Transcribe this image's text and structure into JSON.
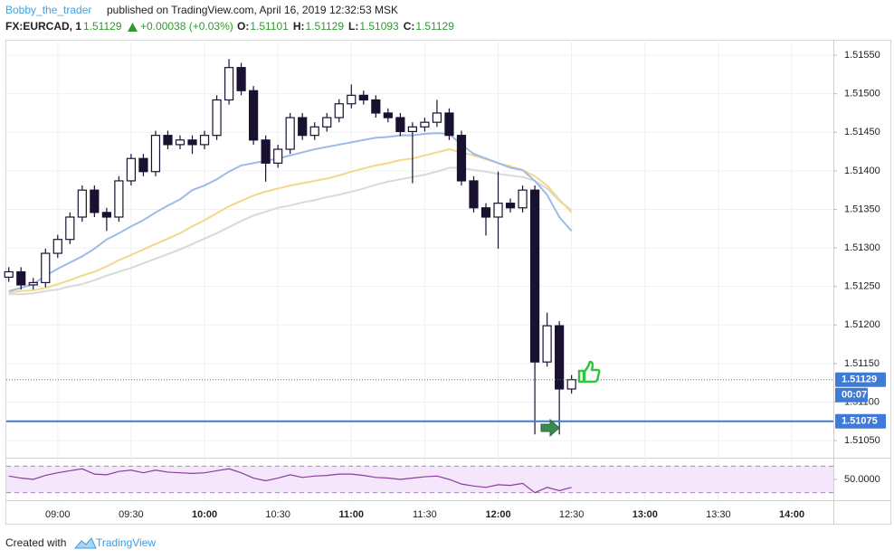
{
  "chart_data": {
    "type": "candlestick",
    "header": {
      "author": "Bobby_the_trader",
      "published": "published on TradingView.com, April 16, 2019 12:32:53 MSK",
      "symbol": "FX:EURCAD, 1",
      "last": "1.51129",
      "change": "+0.00038 (+0.03%)",
      "ohlc": [
        {
          "key": "O:",
          "value": "1.51101"
        },
        {
          "key": "H:",
          "value": "1.51129"
        },
        {
          "key": "L:",
          "value": "1.51093"
        },
        {
          "key": "C:",
          "value": "1.51129"
        }
      ]
    },
    "x": [
      "08:40",
      "08:45",
      "08:50",
      "08:55",
      "09:00",
      "09:05",
      "09:10",
      "09:15",
      "09:20",
      "09:25",
      "09:30",
      "09:35",
      "09:40",
      "09:45",
      "09:50",
      "09:55",
      "10:00",
      "10:05",
      "10:10",
      "10:15",
      "10:20",
      "10:25",
      "10:30",
      "10:35",
      "10:40",
      "10:45",
      "10:50",
      "10:55",
      "11:00",
      "11:05",
      "11:10",
      "11:15",
      "11:20",
      "11:25",
      "11:30",
      "11:35",
      "11:40",
      "11:45",
      "11:50",
      "11:55",
      "12:00",
      "12:05",
      "12:10",
      "12:15",
      "12:20",
      "12:25",
      "12:30"
    ],
    "open": [
      1.51262,
      1.51269,
      1.51252,
      1.51255,
      1.51293,
      1.51311,
      1.5134,
      1.51375,
      1.51346,
      1.5134,
      1.51387,
      1.51416,
      1.51399,
      1.51446,
      1.51434,
      1.5144,
      1.51434,
      1.51446,
      1.51492,
      1.51534,
      1.51504,
      1.5144,
      1.5141,
      1.51428,
      1.51469,
      1.51446,
      1.51457,
      1.51469,
      1.51487,
      1.51498,
      1.51492,
      1.51475,
      1.51469,
      1.51451,
      1.51457,
      1.51463,
      1.51475,
      1.51446,
      1.51387,
      1.51352,
      1.5134,
      1.51358,
      1.51352,
      1.51375,
      1.51152,
      1.51199,
      1.51117
    ],
    "high": [
      1.51275,
      1.51275,
      1.51261,
      1.51299,
      1.51317,
      1.51346,
      1.51381,
      1.51381,
      1.51352,
      1.51393,
      1.51422,
      1.51422,
      1.51452,
      1.51452,
      1.51446,
      1.51446,
      1.51452,
      1.51498,
      1.51545,
      1.5154,
      1.5151,
      1.51446,
      1.51434,
      1.51475,
      1.51475,
      1.51463,
      1.51475,
      1.51493,
      1.51512,
      1.51504,
      1.51498,
      1.51481,
      1.51475,
      1.51463,
      1.51469,
      1.51492,
      1.51481,
      1.51452,
      1.51393,
      1.51358,
      1.51399,
      1.51364,
      1.51381,
      1.51381,
      1.51216,
      1.51205,
      1.51135
    ],
    "low": [
      1.51256,
      1.51246,
      1.51246,
      1.51249,
      1.51287,
      1.51305,
      1.51334,
      1.5134,
      1.51322,
      1.51334,
      1.51381,
      1.51393,
      1.51393,
      1.51428,
      1.51428,
      1.51422,
      1.51428,
      1.5144,
      1.51486,
      1.51498,
      1.51434,
      1.51386,
      1.51404,
      1.51422,
      1.5144,
      1.5144,
      1.51451,
      1.51463,
      1.51481,
      1.51486,
      1.51469,
      1.51463,
      1.51445,
      1.51384,
      1.51451,
      1.51457,
      1.5144,
      1.51381,
      1.51346,
      1.51316,
      1.51299,
      1.51346,
      1.51346,
      1.51058,
      1.51146,
      1.51058,
      1.51111
    ],
    "close": [
      1.51269,
      1.51252,
      1.51255,
      1.51293,
      1.51311,
      1.5134,
      1.51375,
      1.51346,
      1.5134,
      1.51387,
      1.51416,
      1.51399,
      1.51446,
      1.51434,
      1.5144,
      1.51434,
      1.51446,
      1.51492,
      1.51534,
      1.51504,
      1.5144,
      1.5141,
      1.51428,
      1.51469,
      1.51446,
      1.51457,
      1.51469,
      1.51487,
      1.51498,
      1.51492,
      1.51475,
      1.51469,
      1.51451,
      1.51457,
      1.51463,
      1.51475,
      1.51446,
      1.51387,
      1.51352,
      1.5134,
      1.51358,
      1.51352,
      1.51375,
      1.51152,
      1.51199,
      1.51117,
      1.51129
    ],
    "up_color": "#ffffff",
    "down_color": "#1a1030",
    "wick_color": "#1a1030",
    "moving_averages": [
      {
        "color": "#9dbbe8",
        "values": [
          1.51244,
          1.51248,
          1.51253,
          1.51264,
          1.51273,
          1.51281,
          1.51289,
          1.51299,
          1.51311,
          1.51319,
          1.51328,
          1.51336,
          1.51346,
          1.51355,
          1.51363,
          1.51375,
          1.51381,
          1.51389,
          1.51399,
          1.51407,
          1.5141,
          1.51413,
          1.51416,
          1.5142,
          1.51424,
          1.51428,
          1.51431,
          1.51434,
          1.51437,
          1.5144,
          1.51443,
          1.51444,
          1.51446,
          1.51446,
          1.51448,
          1.51449,
          1.51448,
          1.51434,
          1.51422,
          1.51416,
          1.5141,
          1.51404,
          1.51401,
          1.51387,
          1.51369,
          1.5134,
          1.51322
        ]
      },
      {
        "color": "#f2d888",
        "values": [
          1.51242,
          1.51244,
          1.51245,
          1.51248,
          1.51253,
          1.51258,
          1.51264,
          1.51269,
          1.51276,
          1.51284,
          1.51291,
          1.51298,
          1.51305,
          1.51312,
          1.51319,
          1.51328,
          1.51336,
          1.51345,
          1.51354,
          1.51361,
          1.51368,
          1.51373,
          1.51377,
          1.51381,
          1.51384,
          1.51387,
          1.5139,
          1.51394,
          1.51399,
          1.51403,
          1.51407,
          1.5141,
          1.51414,
          1.51416,
          1.5142,
          1.51424,
          1.51428,
          1.51424,
          1.5142,
          1.51415,
          1.5141,
          1.51406,
          1.51401,
          1.51393,
          1.51381,
          1.51363,
          1.51346
        ]
      },
      {
        "color": "#d9d9d9",
        "values": [
          1.5124,
          1.5124,
          1.51241,
          1.51244,
          1.51246,
          1.5125,
          1.51253,
          1.51258,
          1.51264,
          1.51269,
          1.51274,
          1.5128,
          1.51286,
          1.51292,
          1.51298,
          1.51305,
          1.51312,
          1.51319,
          1.51327,
          1.51335,
          1.51342,
          1.51347,
          1.51352,
          1.51355,
          1.51359,
          1.51362,
          1.51366,
          1.51369,
          1.51373,
          1.51377,
          1.51382,
          1.51386,
          1.51389,
          1.51392,
          1.51395,
          1.51399,
          1.51404,
          1.51404,
          1.51401,
          1.51399,
          1.51396,
          1.51394,
          1.51392,
          1.51387,
          1.51377,
          1.51361,
          1.51349
        ]
      }
    ],
    "xlim": [
      "08:39",
      "14:17"
    ],
    "xticks": [
      "09:00",
      "09:30",
      "10:00",
      "10:30",
      "11:00",
      "11:30",
      "12:00",
      "12:30",
      "13:00",
      "13:30",
      "14:00"
    ],
    "ylim": [
      1.51029,
      1.5157
    ],
    "yticks": [
      {
        "value": 1.5105,
        "label": "1.51050"
      },
      {
        "value": 1.511,
        "label": "1.51100"
      },
      {
        "value": 1.5115,
        "label": "1.51150"
      },
      {
        "value": 1.512,
        "label": "1.51200"
      },
      {
        "value": 1.5125,
        "label": "1.51250"
      },
      {
        "value": 1.513,
        "label": "1.51300"
      },
      {
        "value": 1.5135,
        "label": "1.51350"
      },
      {
        "value": 1.514,
        "label": "1.51400"
      },
      {
        "value": 1.5145,
        "label": "1.51450"
      },
      {
        "value": 1.515,
        "label": "1.51500"
      },
      {
        "value": 1.5155,
        "label": "1.51550"
      }
    ],
    "grid": true,
    "price_lines": [
      {
        "value": 1.51129,
        "label": "1.51129",
        "countdown": "00:07",
        "style": "dotted",
        "color": "#3f7ad6"
      },
      {
        "value": 1.51075,
        "label": "1.51075",
        "style": "solid",
        "color": "#3f7ad6"
      }
    ],
    "rsi": {
      "color": "#8a3d9e",
      "values": [
        55,
        52,
        50,
        56,
        60,
        63,
        66,
        58,
        57,
        62,
        64,
        60,
        64,
        61,
        60,
        59,
        60,
        63,
        66,
        60,
        52,
        48,
        52,
        57,
        53,
        55,
        56,
        58,
        58,
        56,
        53,
        52,
        50,
        52,
        54,
        55,
        50,
        43,
        40,
        38,
        42,
        41,
        44,
        30,
        38,
        33,
        38
      ],
      "ylim": [
        20,
        80
      ],
      "yticks": [
        {
          "value": 50,
          "label": "50.0000"
        }
      ],
      "bands": [
        70,
        30
      ]
    },
    "footer": {
      "prefix": "Created with",
      "brand": "TradingView"
    }
  }
}
